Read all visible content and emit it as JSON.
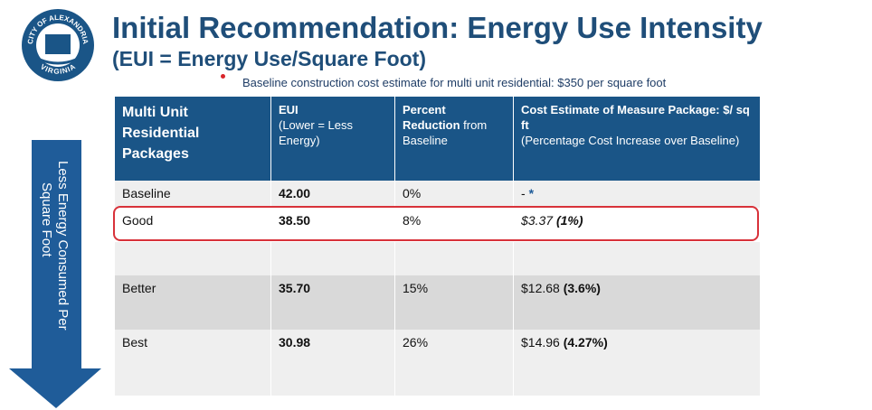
{
  "logo": {
    "top_text": "CITY OF ALEXANDRIA",
    "bottom_text": "VIRGINIA"
  },
  "header": {
    "title": "Initial Recommendation: Energy Use Intensity",
    "subtitle": "(EUI = Energy Use/Square Foot)",
    "bullet": "Baseline construction cost estimate for multi unit residential: $350 per square foot"
  },
  "arrow": {
    "lines": [
      "Less Energy Consumed Per",
      "Square Foot"
    ]
  },
  "table": {
    "columns": [
      [
        {
          "text": "Multi Unit Residential Packages",
          "bold": true
        }
      ],
      [
        {
          "text": "EUI",
          "bold": true
        },
        {
          "text": "(Lower = Less Energy)",
          "bold": false
        }
      ],
      [
        {
          "text": "Percent Reduction",
          "bold": true
        },
        {
          "text": "from Baseline",
          "bold": false
        }
      ],
      [
        {
          "text": "Cost Estimate of Measure Package: $/ sq ft",
          "bold": true
        },
        {
          "text": "(Percentage Cost Increase over Baseline)",
          "bold": false
        }
      ]
    ],
    "rows": [
      {
        "package": "Baseline",
        "eui": "42.00",
        "reduction": "0%",
        "cost": "-",
        "cost_note": "*"
      },
      {
        "package": "Good",
        "eui": "38.50",
        "reduction": "8%",
        "cost": "$3.37",
        "cost_pct": "(1%)",
        "italic": true,
        "highlighted": true
      },
      {
        "package": "Better",
        "eui": "35.70",
        "reduction": "15%",
        "cost": "$12.68",
        "cost_pct": "(3.6%)"
      },
      {
        "package": "Best",
        "eui": "30.98",
        "reduction": "26%",
        "cost": "$14.96",
        "cost_pct": "(4.27%)"
      }
    ]
  }
}
